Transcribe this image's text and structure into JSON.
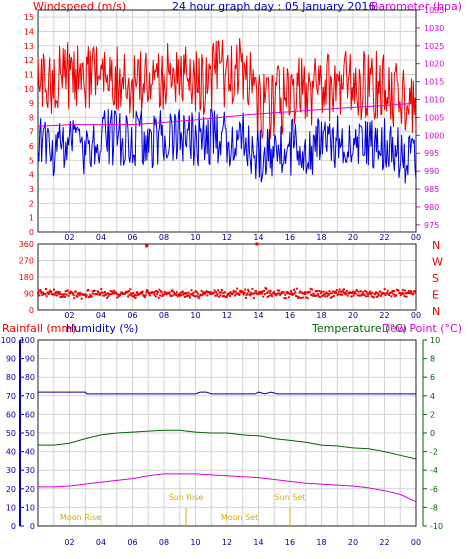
{
  "title": "24 hour graph day : 05 January 2016",
  "chart_data": [
    {
      "type": "line",
      "panel": "wind-barometer",
      "left_axis_label": "Windspeed (m/s)",
      "right_axis_label": "Barometer (hpa)",
      "left_ticks": [
        "0",
        "1",
        "2",
        "3",
        "4",
        "5",
        "6",
        "7",
        "8",
        "9",
        "10",
        "11",
        "12",
        "13",
        "14",
        "15"
      ],
      "right_ticks": [
        "975",
        "980",
        "985",
        "990",
        "995",
        "1000",
        "1005",
        "1010",
        "1015",
        "1020",
        "1025",
        "1030",
        "1035"
      ],
      "x_ticks": [
        "02",
        "04",
        "06",
        "08",
        "10",
        "12",
        "14",
        "16",
        "18",
        "20",
        "22",
        "00"
      ],
      "ylim": [
        0,
        15.5
      ],
      "ylim_right": [
        973,
        1035
      ],
      "xlim": [
        0,
        24
      ],
      "grid": true,
      "series": [
        {
          "key": "gust",
          "color": "#ee0000",
          "x": [
            0,
            1,
            2,
            3,
            4,
            5,
            6,
            7,
            8,
            9,
            10,
            11,
            12,
            13,
            14,
            15,
            16,
            17,
            18,
            19,
            20,
            21,
            22,
            23,
            24
          ],
          "values": [
            10.5,
            10.2,
            11,
            10.4,
            11.3,
            10.6,
            10.4,
            10.3,
            10.8,
            10.7,
            10.4,
            10.8,
            11.2,
            11.6,
            8.6,
            8.9,
            9.7,
            9.7,
            9.9,
            10.4,
            10.2,
            10.3,
            10.1,
            9.4,
            8.3
          ],
          "range": [
            2.5,
            2.5
          ]
        },
        {
          "key": "wind",
          "color": "#0000dd",
          "x": [
            0,
            1,
            2,
            3,
            4,
            5,
            6,
            7,
            8,
            9,
            10,
            11,
            12,
            13,
            14,
            15,
            16,
            17,
            18,
            19,
            20,
            21,
            22,
            23,
            24
          ],
          "values": [
            6.2,
            5.6,
            6.3,
            5.9,
            6.9,
            6.5,
            6.6,
            6.4,
            6.6,
            6.6,
            6.6,
            6.6,
            6.4,
            6.9,
            5.1,
            5.5,
            5.9,
            5.9,
            6,
            6.3,
            6.1,
            6,
            6.1,
            5.2,
            4.7
          ],
          "range": [
            2,
            2
          ]
        },
        {
          "key": "barometer",
          "color": "#dd00dd",
          "axis": "right",
          "x": [
            0,
            2,
            4,
            6,
            8,
            10,
            12,
            14,
            16,
            18,
            20,
            22,
            24
          ],
          "values": [
            1002.5,
            1003,
            1003,
            1003,
            1003.6,
            1004.3,
            1005.2,
            1006,
            1006.6,
            1007.2,
            1007.8,
            1008.3,
            1009
          ]
        }
      ]
    },
    {
      "type": "scatter",
      "panel": "wind-direction",
      "ticks": [
        "360",
        "270",
        "180",
        "90",
        "0"
      ],
      "right_labels": [
        "N",
        "W",
        "S",
        "E",
        "N"
      ],
      "x_ticks": [
        "02",
        "04",
        "06",
        "08",
        "10",
        "12",
        "14",
        "16",
        "18",
        "20",
        "22",
        "00"
      ],
      "ylim": [
        0,
        360
      ],
      "xlim": [
        0,
        24
      ],
      "grid": true,
      "series": [
        {
          "key": "direction",
          "color": "#ee0000",
          "mean": 90,
          "spread": 22
        }
      ],
      "outliers": [
        {
          "x": 6.9,
          "y": 350
        },
        {
          "x": 13.9,
          "y": 360
        }
      ]
    },
    {
      "type": "line",
      "panel": "rain-humidity-temperature",
      "rain_label": "Rainfall (mm)",
      "humidity_label": "Humidity (%)",
      "temperature_label": "Temperature (°C)",
      "dewpoint_label": "Dew Point (°C)",
      "left_ticks": [
        "0",
        "10",
        "20",
        "30",
        "40",
        "50",
        "60",
        "70",
        "80",
        "90",
        "100"
      ],
      "right_ticks": [
        "-10",
        "-8",
        "-6",
        "-4",
        "-2",
        "0",
        "2",
        "4",
        "6",
        "8",
        "10"
      ],
      "x_ticks": [
        "02",
        "04",
        "06",
        "08",
        "10",
        "12",
        "14",
        "16",
        "18",
        "20",
        "22",
        "00"
      ],
      "ylim": [
        0,
        100
      ],
      "ylim_right": [
        -10,
        10
      ],
      "xlim": [
        0,
        24
      ],
      "grid": true,
      "series": [
        {
          "key": "humidity",
          "color": "#0000aa",
          "x": [
            0,
            1,
            2,
            3,
            3.1,
            4,
            6,
            8,
            10,
            10.3,
            10.7,
            11,
            12,
            13.8,
            14,
            14.4,
            14.8,
            15.2,
            16,
            18,
            20,
            22,
            24
          ],
          "values": [
            72,
            72,
            72,
            72,
            71,
            71,
            71,
            71,
            71,
            72,
            72,
            71,
            71,
            71,
            72,
            71,
            72,
            71,
            71,
            71,
            71,
            71,
            71
          ]
        },
        {
          "key": "temperature",
          "color": "#006600",
          "axis": "right",
          "x": [
            0,
            1,
            2,
            3,
            4,
            5,
            6,
            7,
            8,
            9,
            10,
            11,
            12,
            13,
            14,
            15,
            16,
            17,
            18,
            19,
            20,
            21,
            22,
            23,
            24
          ],
          "values": [
            -1.3,
            -1.3,
            -1.1,
            -0.6,
            -0.2,
            0,
            0.1,
            0.2,
            0.3,
            0.3,
            0.1,
            0,
            0,
            -0.2,
            -0.3,
            -0.6,
            -0.8,
            -1,
            -1.3,
            -1.4,
            -1.6,
            -1.7,
            -2,
            -2.4,
            -2.8
          ]
        },
        {
          "key": "dewpoint",
          "color": "#dd00dd",
          "axis": "right",
          "x": [
            0,
            1,
            2,
            3,
            4,
            5,
            6,
            7,
            8,
            9,
            10,
            11,
            12,
            13,
            14,
            15,
            16,
            17,
            18,
            19,
            20,
            21,
            22,
            23,
            24
          ],
          "values": [
            -5.8,
            -5.8,
            -5.7,
            -5.5,
            -5.3,
            -5.1,
            -4.9,
            -4.6,
            -4.4,
            -4.4,
            -4.4,
            -4.5,
            -4.6,
            -4.7,
            -4.8,
            -5,
            -5.2,
            -5.4,
            -5.5,
            -5.6,
            -5.7,
            -5.9,
            -6.2,
            -6.6,
            -7.4
          ]
        }
      ],
      "events": [
        {
          "label": "Moon Rise",
          "x": 2.7,
          "row": "low"
        },
        {
          "label": "Sun Rise",
          "x": 9.4,
          "row": "high"
        },
        {
          "label": "Moon Set",
          "x": 12.8,
          "row": "low"
        },
        {
          "label": "Sun Set",
          "x": 16.0,
          "row": "high"
        }
      ],
      "event_lines": [
        9.4,
        16.0
      ]
    }
  ]
}
